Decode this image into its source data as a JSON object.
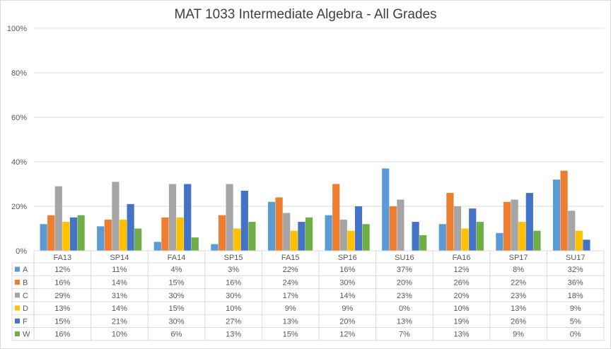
{
  "chart_data": {
    "type": "bar",
    "title": "MAT 1033 Intermediate Algebra - All Grades",
    "xlabel": "",
    "ylabel": "",
    "ylim": [
      0,
      100
    ],
    "y_ticks": [
      "0%",
      "20%",
      "40%",
      "60%",
      "80%",
      "100%"
    ],
    "y_tick_values": [
      0,
      20,
      40,
      60,
      80,
      100
    ],
    "grid": true,
    "legend": "data-table",
    "categories": [
      "FA13",
      "SP14",
      "FA14",
      "SP15",
      "FA15",
      "SP16",
      "SU16",
      "FA16",
      "SP17",
      "SU17"
    ],
    "series": [
      {
        "name": "A",
        "color": "#5b9bd5",
        "values": [
          12,
          11,
          4,
          3,
          22,
          16,
          37,
          12,
          8,
          32
        ],
        "labels": [
          "12%",
          "11%",
          "4%",
          "3%",
          "22%",
          "16%",
          "37%",
          "12%",
          "8%",
          "32%"
        ]
      },
      {
        "name": "B",
        "color": "#ed7d31",
        "values": [
          16,
          14,
          15,
          16,
          24,
          30,
          20,
          26,
          22,
          36
        ],
        "labels": [
          "16%",
          "14%",
          "15%",
          "16%",
          "24%",
          "30%",
          "20%",
          "26%",
          "22%",
          "36%"
        ]
      },
      {
        "name": "C",
        "color": "#a5a5a5",
        "values": [
          29,
          31,
          30,
          30,
          17,
          14,
          23,
          20,
          23,
          18
        ],
        "labels": [
          "29%",
          "31%",
          "30%",
          "30%",
          "17%",
          "14%",
          "23%",
          "20%",
          "23%",
          "18%"
        ]
      },
      {
        "name": "D",
        "color": "#ffc000",
        "values": [
          13,
          14,
          15,
          10,
          9,
          9,
          0,
          10,
          13,
          9
        ],
        "labels": [
          "13%",
          "14%",
          "15%",
          "10%",
          "9%",
          "9%",
          "0%",
          "10%",
          "13%",
          "9%"
        ]
      },
      {
        "name": "F",
        "color": "#4472c4",
        "values": [
          15,
          21,
          30,
          27,
          13,
          20,
          13,
          19,
          26,
          5
        ],
        "labels": [
          "15%",
          "21%",
          "30%",
          "27%",
          "13%",
          "20%",
          "13%",
          "19%",
          "26%",
          "5%"
        ]
      },
      {
        "name": "W",
        "color": "#70ad47",
        "values": [
          16,
          10,
          6,
          13,
          15,
          12,
          7,
          13,
          9,
          0
        ],
        "labels": [
          "16%",
          "10%",
          "6%",
          "13%",
          "15%",
          "12%",
          "7%",
          "13%",
          "9%",
          "0%"
        ]
      }
    ]
  }
}
